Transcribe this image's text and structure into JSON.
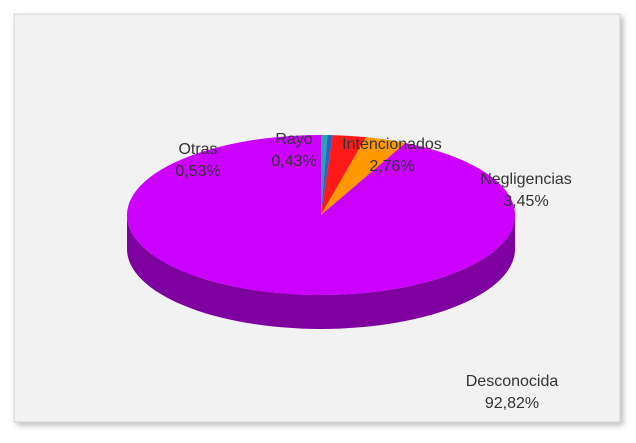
{
  "chart_data": {
    "type": "pie",
    "categories": [
      "Otras",
      "Rayo",
      "Intencionados",
      "Negligencias",
      "Desconocida"
    ],
    "values": [
      0.53,
      0.43,
      2.76,
      3.45,
      92.82
    ],
    "value_labels": [
      "0,53%",
      "0,43%",
      "2,76%",
      "3,45%",
      "92,82%"
    ],
    "colors": [
      "#27a3b5",
      "#2f5fc4",
      "#ff1a1a",
      "#ff9900",
      "#cc00ff"
    ]
  }
}
